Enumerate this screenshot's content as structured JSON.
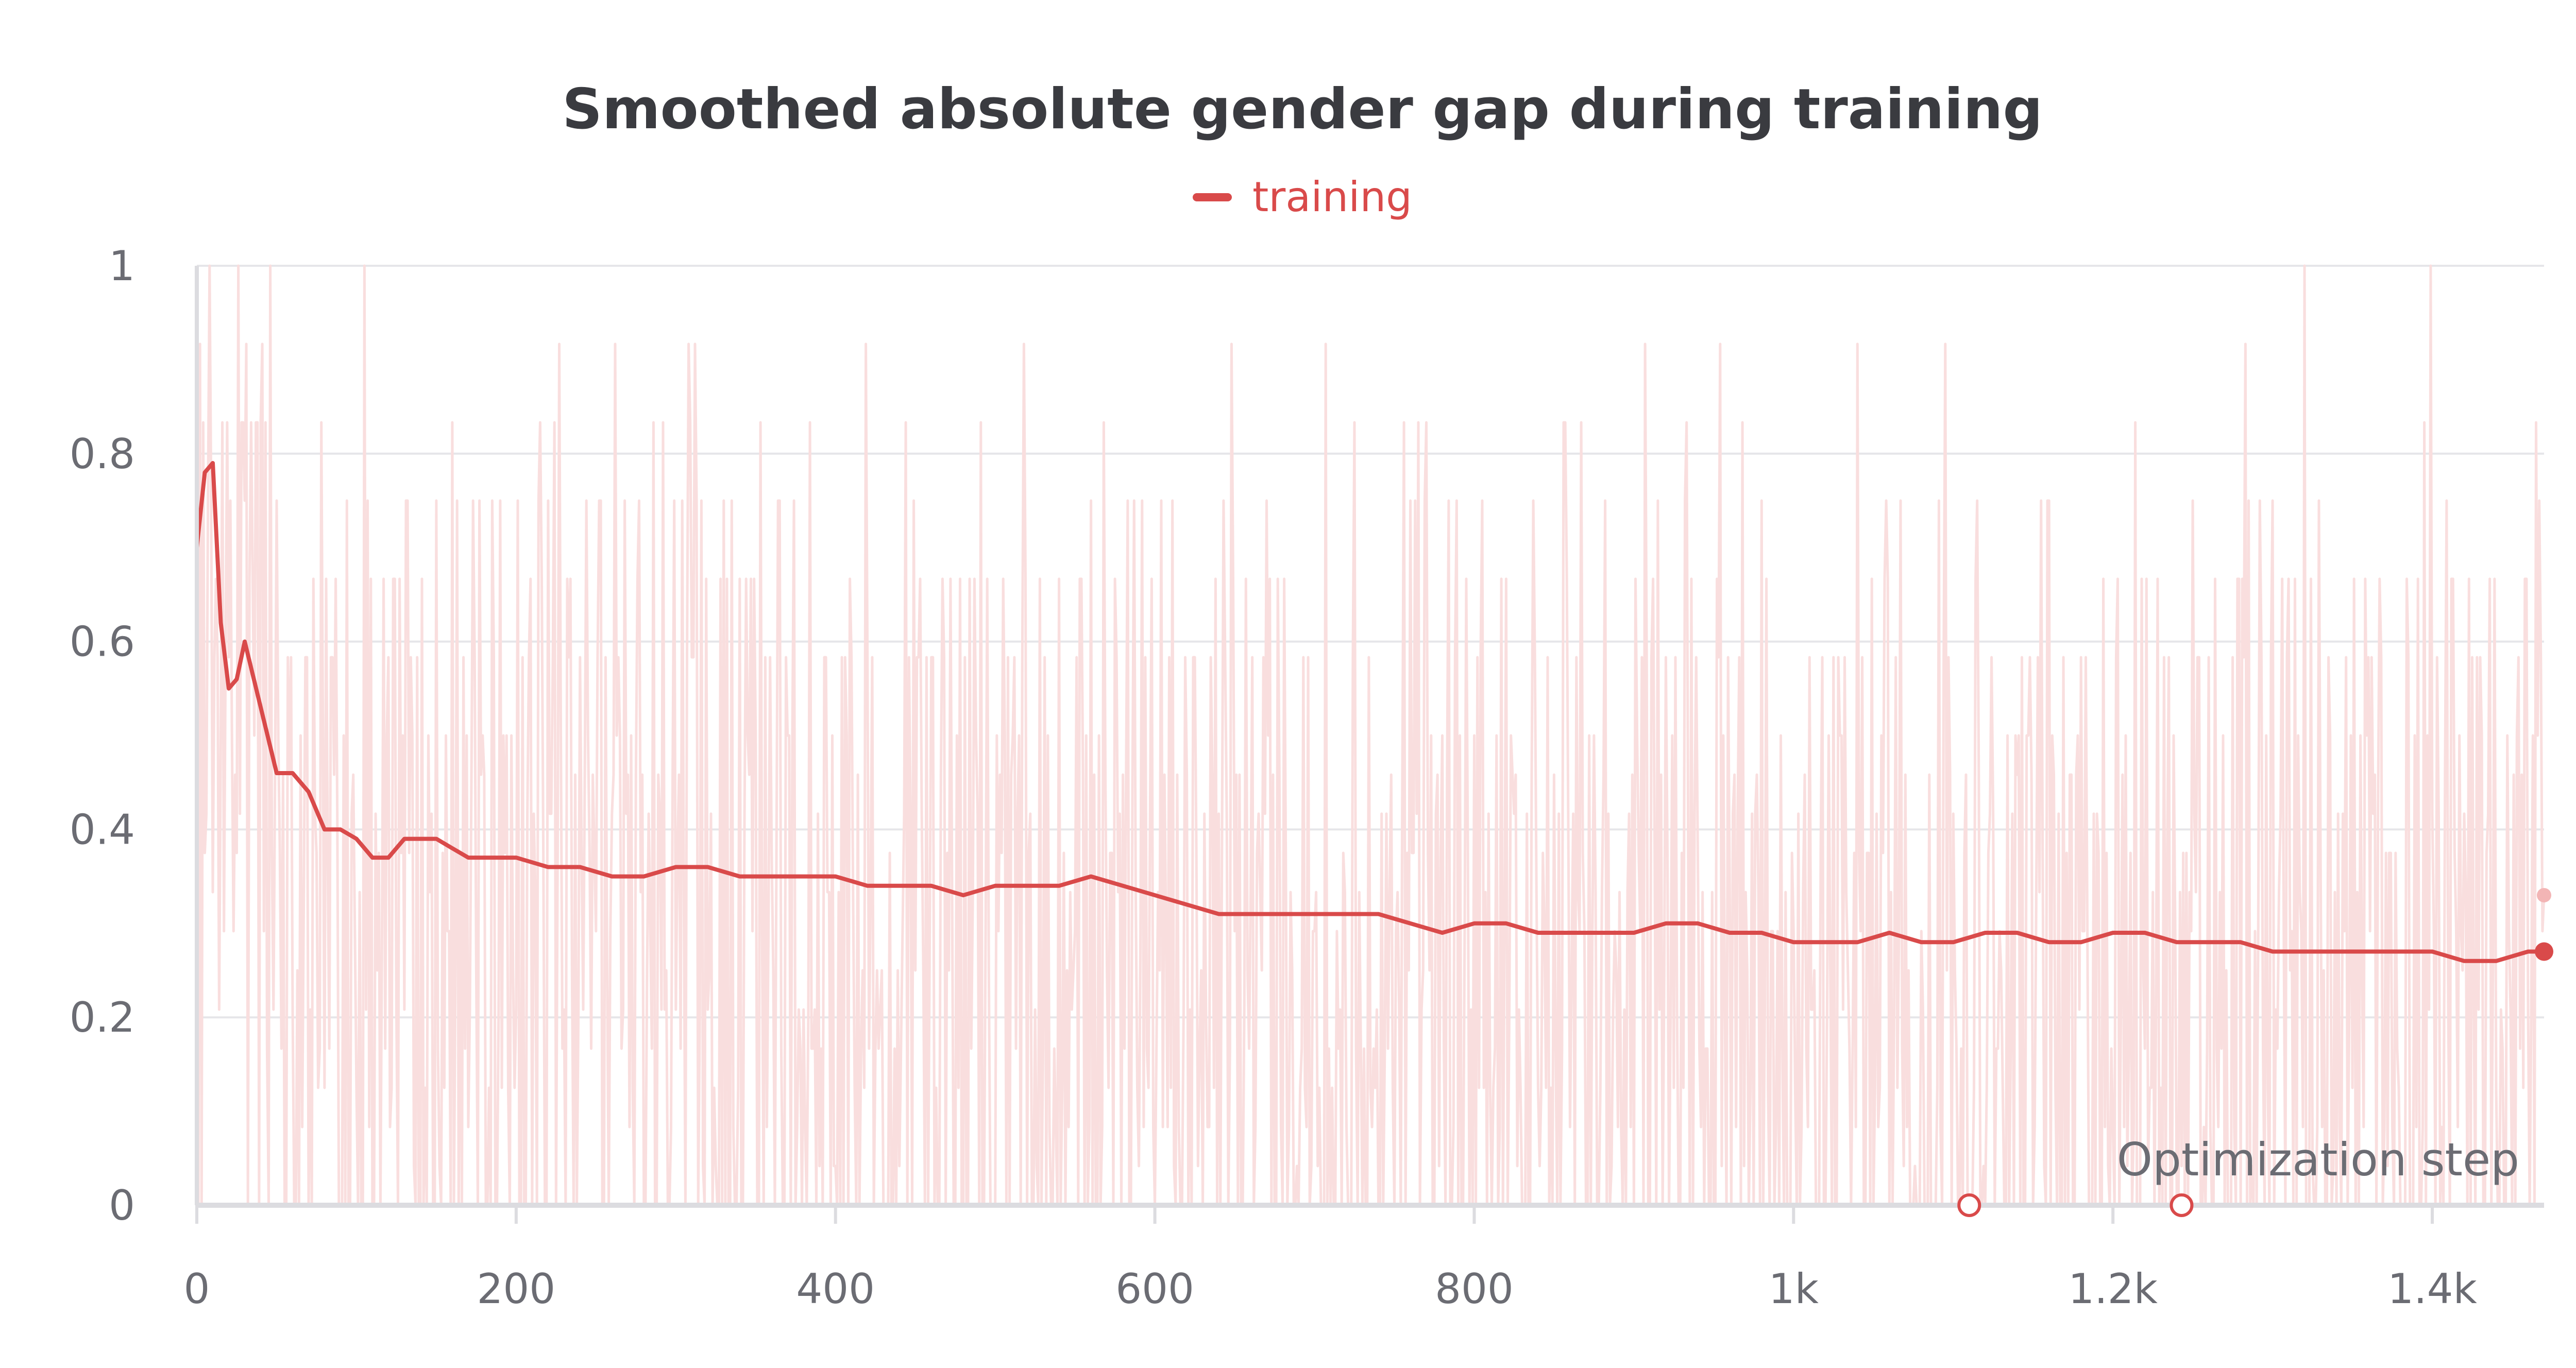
{
  "chart_data": {
    "type": "line",
    "title": "Smoothed absolute gender gap during training",
    "xlabel": "Optimization step",
    "ylabel": "",
    "xlim": [
      0,
      1470
    ],
    "ylim": [
      0,
      1
    ],
    "x_ticks": [
      0,
      200,
      400,
      600,
      800,
      1000,
      1200,
      1400
    ],
    "x_tick_labels": [
      "0",
      "200",
      "400",
      "600",
      "800",
      "1k",
      "1.2k",
      "1.4k"
    ],
    "y_ticks": [
      0,
      0.2,
      0.4,
      0.6,
      0.8,
      1
    ],
    "y_tick_labels": [
      "0",
      "0.2",
      "0.4",
      "0.6",
      "0.8",
      "1"
    ],
    "grid": true,
    "legend_position": "top-center",
    "series": [
      {
        "name": "training",
        "color": "#d94a4a",
        "raw_color": "#f9dede",
        "x": [
          0,
          5,
          10,
          15,
          20,
          25,
          30,
          40,
          50,
          60,
          70,
          80,
          90,
          100,
          110,
          120,
          130,
          140,
          150,
          160,
          170,
          180,
          200,
          220,
          240,
          260,
          280,
          300,
          320,
          340,
          360,
          380,
          400,
          420,
          440,
          460,
          480,
          500,
          520,
          540,
          560,
          580,
          600,
          620,
          640,
          660,
          680,
          700,
          720,
          740,
          760,
          780,
          800,
          820,
          840,
          860,
          880,
          900,
          920,
          940,
          960,
          980,
          1000,
          1020,
          1040,
          1060,
          1080,
          1100,
          1120,
          1140,
          1160,
          1180,
          1200,
          1220,
          1240,
          1260,
          1280,
          1300,
          1320,
          1340,
          1360,
          1380,
          1400,
          1420,
          1440,
          1460,
          1470
        ],
        "y": [
          0.7,
          0.78,
          0.79,
          0.62,
          0.55,
          0.56,
          0.6,
          0.53,
          0.46,
          0.46,
          0.44,
          0.4,
          0.4,
          0.39,
          0.37,
          0.37,
          0.39,
          0.39,
          0.39,
          0.38,
          0.37,
          0.37,
          0.37,
          0.36,
          0.36,
          0.35,
          0.35,
          0.36,
          0.36,
          0.35,
          0.35,
          0.35,
          0.35,
          0.34,
          0.34,
          0.34,
          0.33,
          0.34,
          0.34,
          0.34,
          0.35,
          0.34,
          0.33,
          0.32,
          0.31,
          0.31,
          0.31,
          0.31,
          0.31,
          0.31,
          0.3,
          0.29,
          0.3,
          0.3,
          0.29,
          0.29,
          0.29,
          0.29,
          0.3,
          0.3,
          0.29,
          0.29,
          0.28,
          0.28,
          0.28,
          0.29,
          0.28,
          0.28,
          0.29,
          0.29,
          0.28,
          0.28,
          0.29,
          0.29,
          0.28,
          0.28,
          0.28,
          0.27,
          0.27,
          0.27,
          0.27,
          0.27,
          0.27,
          0.26,
          0.26,
          0.27,
          0.27
        ]
      }
    ],
    "last_raw_value": 0.33,
    "markers_at_zero": [
      1110,
      1243
    ]
  }
}
